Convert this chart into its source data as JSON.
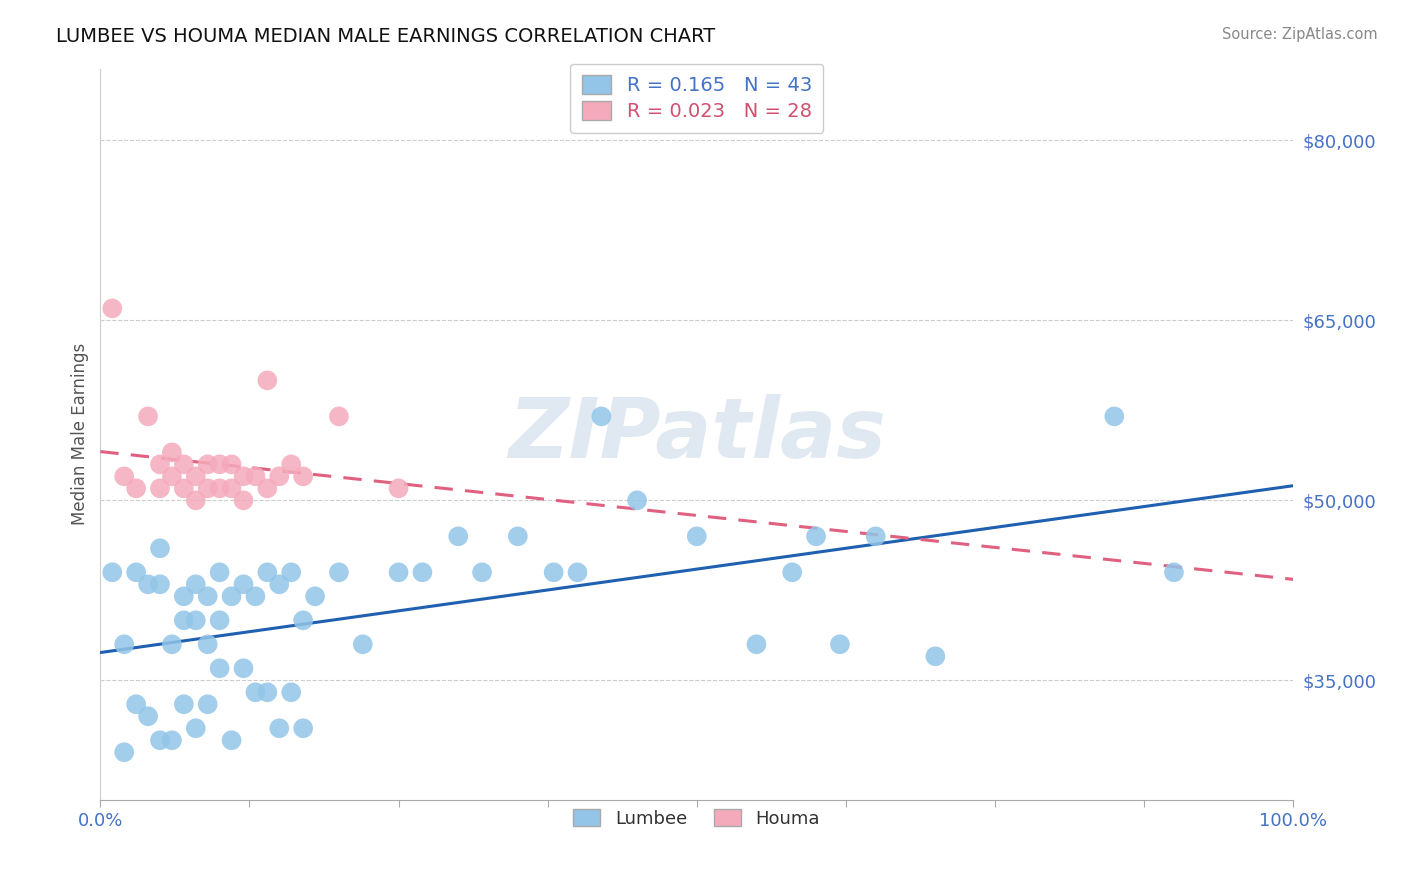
{
  "title": "LUMBEE VS HOUMA MEDIAN MALE EARNINGS CORRELATION CHART",
  "source_text": "Source: ZipAtlas.com",
  "ylabel": "Median Male Earnings",
  "xlim": [
    0.0,
    100.0
  ],
  "ylim": [
    25000,
    86000
  ],
  "yticks": [
    35000,
    50000,
    65000,
    80000
  ],
  "ytick_labels": [
    "$35,000",
    "$50,000",
    "$65,000",
    "$80,000"
  ],
  "xticks": [
    0,
    12.5,
    25,
    37.5,
    50,
    62.5,
    75,
    87.5,
    100
  ],
  "xtick_labels": [
    "0.0%",
    "",
    "",
    "",
    "",
    "",
    "",
    "",
    "100.0%"
  ],
  "legend_r_lumbee": "R = 0.165",
  "legend_n_lumbee": "N = 43",
  "legend_r_houma": "R = 0.023",
  "legend_n_houma": "N = 28",
  "lumbee_color": "#92C5E8",
  "houma_color": "#F4AABB",
  "lumbee_line_color": "#2060B0",
  "houma_line_color": "#E06080",
  "watermark_text": "ZIPatlas",
  "lumbee_x": [
    1,
    2,
    3,
    4,
    5,
    5,
    6,
    7,
    7,
    8,
    8,
    9,
    9,
    10,
    10,
    11,
    12,
    13,
    14,
    15,
    16,
    17,
    18,
    20,
    22,
    25,
    27,
    30,
    32,
    35,
    38,
    40,
    42,
    45,
    50,
    55,
    58,
    60,
    62,
    65,
    70,
    85,
    90
  ],
  "lumbee_y": [
    44000,
    38000,
    44000,
    43000,
    43000,
    46000,
    38000,
    40000,
    42000,
    40000,
    43000,
    38000,
    42000,
    44000,
    40000,
    42000,
    43000,
    42000,
    44000,
    43000,
    44000,
    40000,
    42000,
    44000,
    38000,
    44000,
    44000,
    47000,
    44000,
    47000,
    44000,
    44000,
    57000,
    50000,
    47000,
    38000,
    44000,
    47000,
    38000,
    47000,
    37000,
    57000,
    44000
  ],
  "houma_x": [
    1,
    2,
    3,
    4,
    5,
    5,
    6,
    6,
    7,
    7,
    8,
    8,
    9,
    9,
    10,
    10,
    11,
    11,
    12,
    12,
    13,
    14,
    14,
    15,
    16,
    17,
    20,
    25
  ],
  "houma_y": [
    66000,
    52000,
    51000,
    57000,
    53000,
    51000,
    52000,
    54000,
    53000,
    51000,
    50000,
    52000,
    51000,
    53000,
    51000,
    53000,
    51000,
    53000,
    50000,
    52000,
    52000,
    51000,
    60000,
    52000,
    53000,
    52000,
    57000,
    51000
  ],
  "lumbee_low_x": [
    2,
    3,
    4,
    5,
    6,
    7,
    8,
    9,
    10,
    11,
    12,
    13,
    14,
    15,
    16,
    17
  ],
  "lumbee_low_y": [
    29000,
    33000,
    32000,
    30000,
    30000,
    33000,
    31000,
    33000,
    36000,
    30000,
    36000,
    34000,
    34000,
    31000,
    34000,
    31000
  ]
}
